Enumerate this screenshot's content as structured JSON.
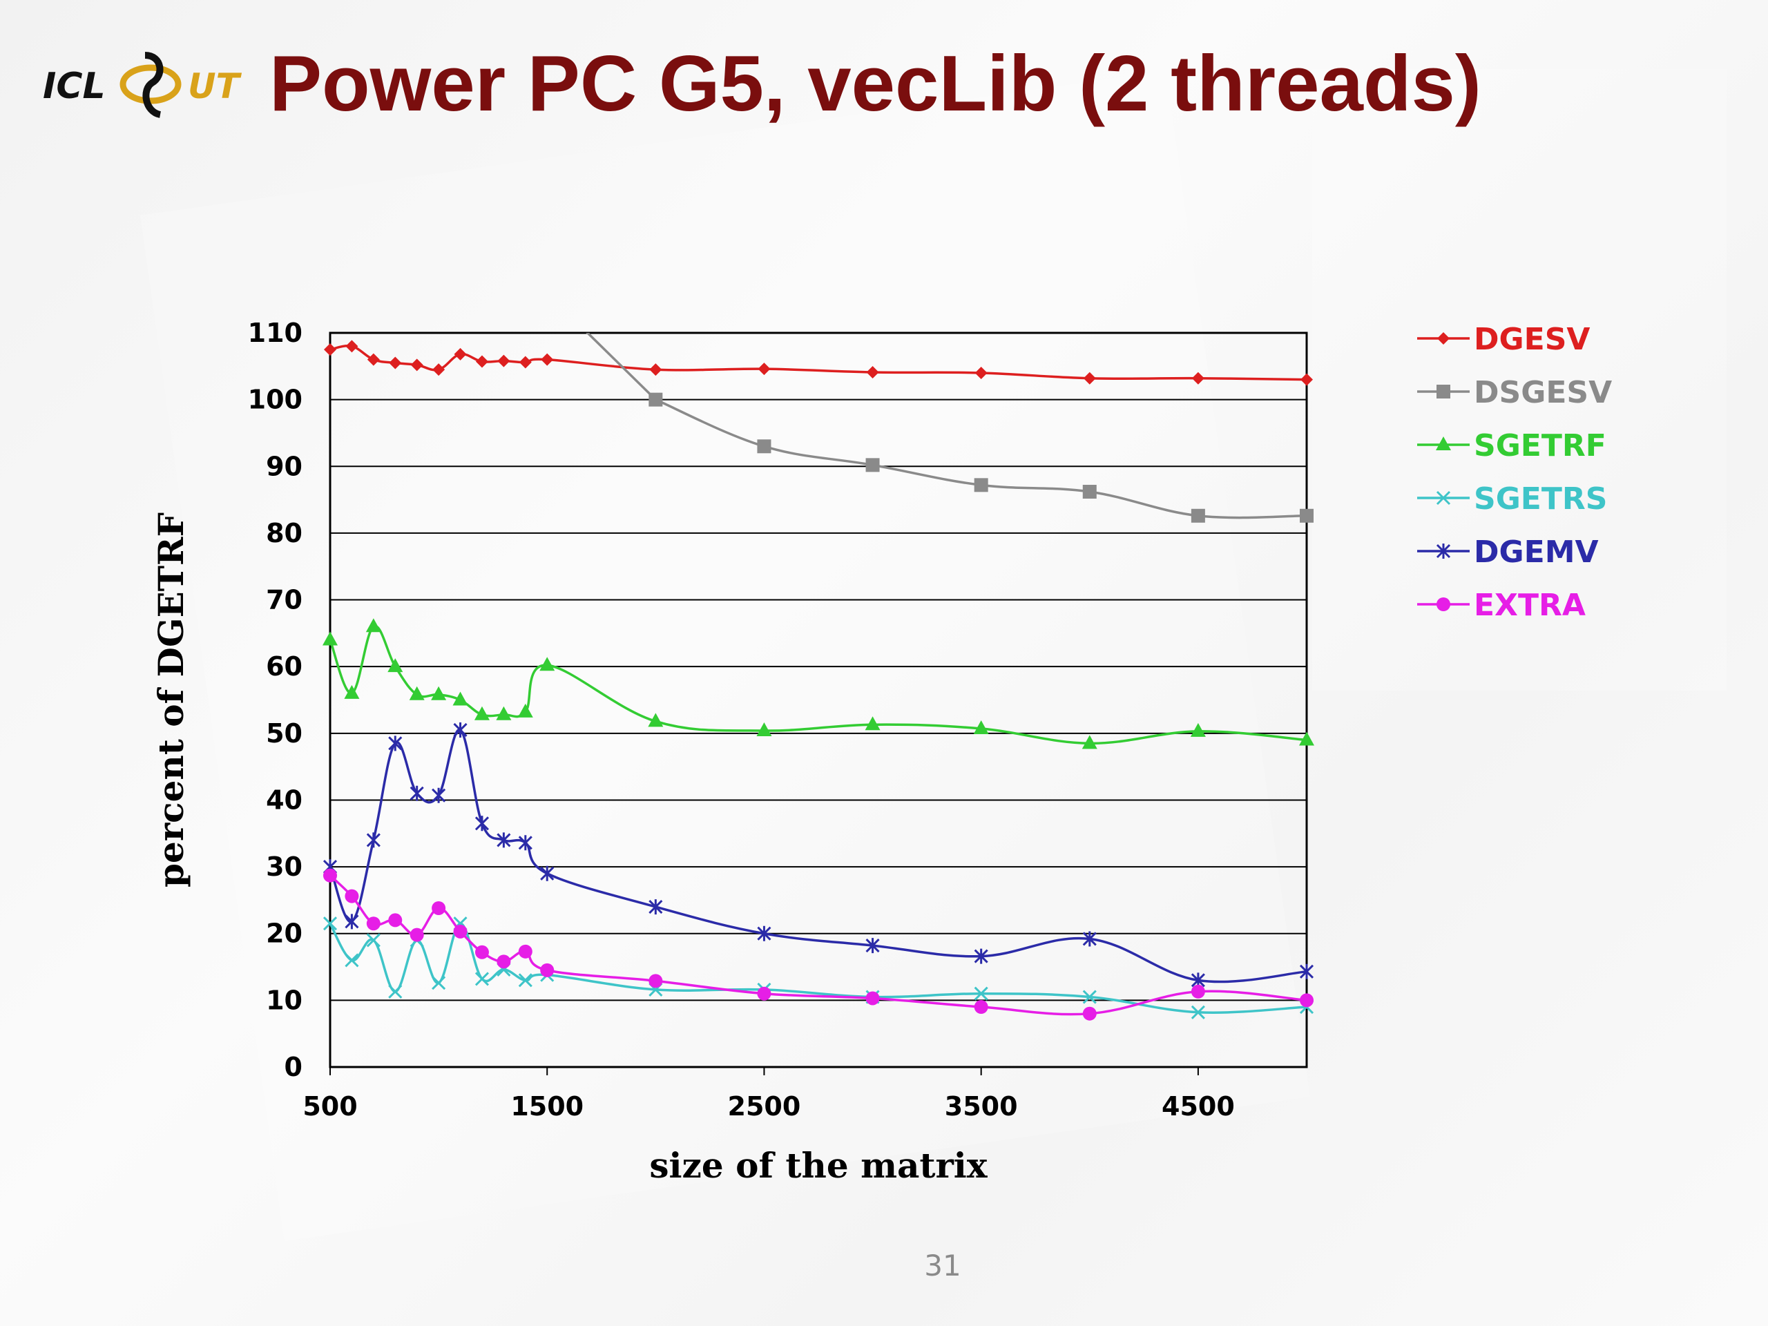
{
  "slide": {
    "title": "Power PC G5, vecLib (2 threads)",
    "page_number": "31",
    "logo": {
      "icl_text": "ICL",
      "ut_text": "UT"
    }
  },
  "chart_data": {
    "type": "line",
    "xlabel": "size of the matrix",
    "ylabel": "percent of DGETRF",
    "xlim": [
      500,
      5000
    ],
    "ylim": [
      0,
      110
    ],
    "x_ticks": [
      500,
      1500,
      2500,
      3500,
      4500
    ],
    "y_ticks": [
      0,
      10,
      20,
      30,
      40,
      50,
      60,
      70,
      80,
      90,
      100,
      110
    ],
    "grid": "horizontal",
    "legend_position": "right",
    "x": [
      500,
      600,
      700,
      800,
      900,
      1000,
      1100,
      1200,
      1300,
      1400,
      1500,
      2000,
      2500,
      3000,
      3500,
      4000,
      4500,
      5000
    ],
    "series": [
      {
        "name": "DGESV",
        "color": "#dd1f1f",
        "marker": "diamond",
        "values": [
          107.5,
          108,
          106,
          105.5,
          105.2,
          104.5,
          106.8,
          105.7,
          105.8,
          105.6,
          106,
          104.5,
          104.6,
          104.1,
          104,
          103.2,
          103.2,
          103
        ]
      },
      {
        "name": "DSGESV",
        "color": "#8a8a8a",
        "marker": "square",
        "values": [
          null,
          null,
          null,
          null,
          null,
          null,
          null,
          null,
          null,
          null,
          null,
          100,
          93,
          90.2,
          87.2,
          86.2,
          82.6,
          82.6
        ]
      },
      {
        "name": "SGETRF",
        "color": "#33cc33",
        "marker": "triangle",
        "values": [
          64,
          56,
          66,
          60,
          55.8,
          55.8,
          55,
          52.8,
          52.8,
          53.2,
          60.2,
          51.8,
          50.4,
          51.3,
          50.7,
          48.5,
          50.3,
          49
        ]
      },
      {
        "name": "SGETRS",
        "color": "#3ec4c8",
        "marker": "x",
        "values": [
          21.5,
          16,
          19,
          11.3,
          19,
          12.6,
          21.5,
          13.2,
          14.6,
          13,
          13.8,
          11.6,
          11.6,
          10.5,
          11,
          10.5,
          8.2,
          9
        ]
      },
      {
        "name": "DGEMV",
        "color": "#2b2ba8",
        "marker": "asterisk",
        "values": [
          30,
          21.8,
          34,
          48.5,
          41,
          40.7,
          50.5,
          36.5,
          34,
          33.6,
          29,
          24,
          20,
          18.2,
          16.6,
          19.2,
          13,
          14.3
        ]
      },
      {
        "name": "EXTRA",
        "color": "#e61ee6",
        "marker": "circle",
        "values": [
          28.7,
          25.6,
          21.5,
          22,
          19.8,
          23.8,
          20.3,
          17.2,
          15.8,
          17.3,
          14.5,
          12.9,
          11,
          10.3,
          9,
          8,
          11.3,
          10
        ]
      }
    ],
    "dsgesv_partial_line_note": null
  }
}
